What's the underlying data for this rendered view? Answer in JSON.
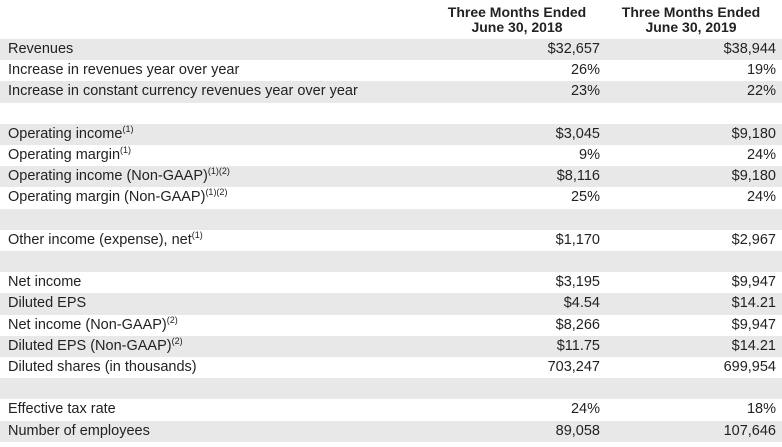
{
  "header": {
    "columns": [
      [
        "Three Months Ended",
        "June 30, 2018"
      ],
      [
        "Three Months Ended",
        "June 30, 2019"
      ]
    ]
  },
  "sections": [
    [
      {
        "label": "Revenues",
        "values": [
          "$32,657",
          "$38,944"
        ]
      },
      {
        "label": "Increase in revenues year over year",
        "values": [
          "26%",
          "19%"
        ]
      },
      {
        "label": "Increase in constant currency revenues year over year",
        "values": [
          "23%",
          "22%"
        ]
      }
    ],
    [
      {
        "label": "Operating income",
        "note": "(1)",
        "values": [
          "$3,045",
          "$9,180"
        ]
      },
      {
        "label": "Operating margin",
        "note": "(1)",
        "values": [
          "9%",
          "24%"
        ]
      },
      {
        "label": "Operating income (Non-GAAP)",
        "note": "(1)(2)",
        "values": [
          "$8,116",
          "$9,180"
        ]
      },
      {
        "label": "Operating margin (Non-GAAP)",
        "note": "(1)(2)",
        "values": [
          "25%",
          "24%"
        ]
      }
    ],
    [
      {
        "label": "Other income (expense), net",
        "note": "(1)",
        "values": [
          "$1,170",
          "$2,967"
        ]
      }
    ],
    [
      {
        "label": "Net income",
        "values": [
          "$3,195",
          "$9,947"
        ]
      },
      {
        "label": "Diluted EPS",
        "values": [
          "$4.54",
          "$14.21"
        ]
      },
      {
        "label": "Net income (Non-GAAP)",
        "note": "(2)",
        "values": [
          "$8,266",
          "$9,947"
        ]
      },
      {
        "label": "Diluted EPS (Non-GAAP)",
        "note": "(2)",
        "values": [
          "$11.75",
          "$14.21"
        ]
      },
      {
        "label": "Diluted shares (in thousands)",
        "values": [
          "703,247",
          "699,954"
        ]
      }
    ],
    [
      {
        "label": "Effective tax rate",
        "values": [
          "24%",
          "18%"
        ]
      },
      {
        "label": "Number of employees",
        "values": [
          "89,058",
          "107,646"
        ]
      }
    ]
  ]
}
